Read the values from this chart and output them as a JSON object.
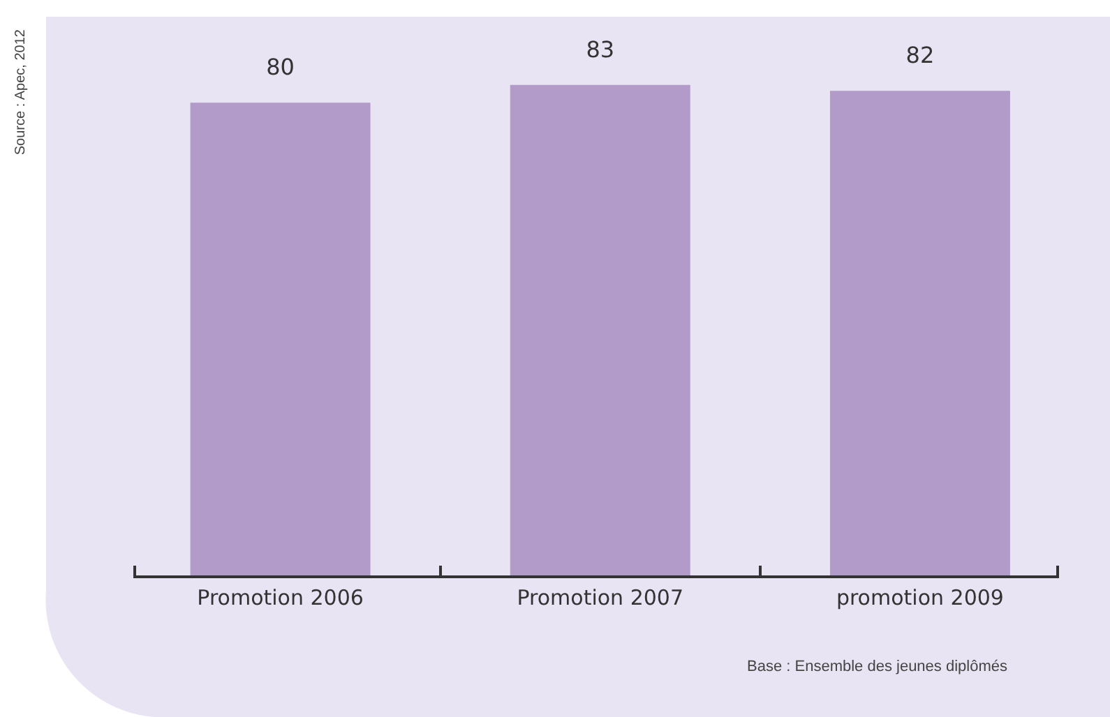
{
  "chart_data": {
    "type": "bar",
    "categories": [
      "Promotion 2006",
      "Promotion 2007",
      "promotion 2009"
    ],
    "values": [
      80,
      83,
      82
    ],
    "color": "#b29ac9",
    "data_labels": true,
    "tick_labels": "x",
    "grid": false,
    "annotations": [
      "Source : Apec, 2012",
      "Base : Ensemble des jeunes diplômés"
    ]
  }
}
